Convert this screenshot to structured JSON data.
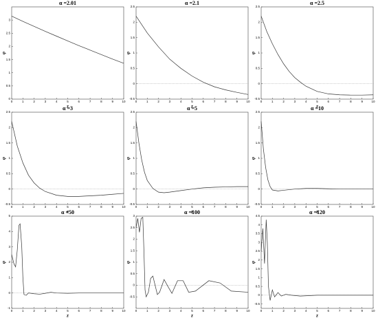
{
  "chart_data": [
    {
      "type": "line",
      "title": "α =2.01",
      "x_label": "z",
      "y_label": "φ",
      "color": "#333333",
      "xlim": [
        0,
        10
      ],
      "ylim": [
        0,
        3.5
      ],
      "xticks": [
        0,
        1,
        2,
        3,
        4,
        5,
        6,
        7,
        8,
        9,
        10
      ],
      "yticks": [
        0,
        0.5,
        1,
        1.5,
        2,
        2.5,
        3
      ],
      "x": [
        0,
        1,
        2,
        3,
        4,
        5,
        6,
        7,
        8,
        9,
        10
      ],
      "values": [
        3.15,
        2.95,
        2.76,
        2.57,
        2.39,
        2.21,
        2.03,
        1.86,
        1.69,
        1.52,
        1.36
      ]
    },
    {
      "type": "line",
      "title": "α =2.1",
      "x_label": "z",
      "y_label": "φ",
      "color": "#333333",
      "xlim": [
        0,
        10
      ],
      "ylim": [
        -0.5,
        2.5
      ],
      "xticks": [
        0,
        1,
        2,
        3,
        4,
        5,
        6,
        7,
        8,
        9,
        10
      ],
      "yticks": [
        -0.5,
        0,
        0.5,
        1,
        1.5,
        2,
        2.5
      ],
      "x": [
        0,
        1,
        2,
        3,
        4,
        5,
        6,
        7,
        8,
        9,
        10
      ],
      "values": [
        2.2,
        1.65,
        1.2,
        0.8,
        0.5,
        0.25,
        0.05,
        -0.1,
        -0.2,
        -0.28,
        -0.35
      ]
    },
    {
      "type": "line",
      "title": "α =2.5",
      "x_label": "z",
      "y_label": "φ",
      "color": "#333333",
      "xlim": [
        0,
        10
      ],
      "ylim": [
        -0.5,
        2.5
      ],
      "xticks": [
        0,
        1,
        2,
        3,
        4,
        5,
        6,
        7,
        8,
        9,
        10
      ],
      "yticks": [
        -0.5,
        0,
        0.5,
        1,
        1.5,
        2,
        2.5
      ],
      "x": [
        0,
        0.5,
        1,
        1.5,
        2,
        2.5,
        3,
        3.5,
        4,
        5,
        6,
        7,
        8,
        9,
        10
      ],
      "values": [
        2.2,
        1.7,
        1.3,
        0.95,
        0.65,
        0.4,
        0.2,
        0.05,
        -0.08,
        -0.25,
        -0.33,
        -0.36,
        -0.37,
        -0.37,
        -0.36
      ]
    },
    {
      "type": "line",
      "title": "α =3",
      "x_label": "z",
      "y_label": "φ",
      "color": "#333333",
      "xlim": [
        0,
        10
      ],
      "ylim": [
        -0.5,
        2.5
      ],
      "xticks": [
        0,
        1,
        2,
        3,
        4,
        5,
        6,
        7,
        8,
        9,
        10
      ],
      "yticks": [
        -0.5,
        0,
        0.5,
        1,
        1.5,
        2,
        2.5
      ],
      "x": [
        0,
        0.5,
        1,
        1.5,
        2,
        2.5,
        3,
        4,
        5,
        6,
        7,
        8,
        9,
        10
      ],
      "values": [
        2.2,
        1.4,
        0.85,
        0.45,
        0.2,
        0.03,
        -0.08,
        -0.2,
        -0.24,
        -0.24,
        -0.22,
        -0.2,
        -0.17,
        -0.14
      ]
    },
    {
      "type": "line",
      "title": "α =5",
      "x_label": "z",
      "y_label": "φ",
      "color": "#333333",
      "xlim": [
        0,
        10
      ],
      "ylim": [
        -0.5,
        2.5
      ],
      "xticks": [
        0,
        1,
        2,
        3,
        4,
        5,
        6,
        7,
        8,
        9,
        10
      ],
      "yticks": [
        -0.5,
        0,
        0.5,
        1,
        1.5,
        2,
        2.5
      ],
      "x": [
        0,
        0.25,
        0.5,
        0.75,
        1,
        1.5,
        2,
        2.5,
        3,
        4,
        5,
        6,
        7,
        8,
        9,
        10
      ],
      "values": [
        2.2,
        1.5,
        0.95,
        0.55,
        0.28,
        0.02,
        -0.1,
        -0.12,
        -0.1,
        -0.05,
        0,
        0.04,
        0.06,
        0.07,
        0.08,
        0.08
      ]
    },
    {
      "type": "line",
      "title": "α =10",
      "x_label": "z",
      "y_label": "φ",
      "color": "#333333",
      "xlim": [
        0,
        10
      ],
      "ylim": [
        -0.5,
        2.5
      ],
      "xticks": [
        0,
        1,
        2,
        3,
        4,
        5,
        6,
        7,
        8,
        9,
        10
      ],
      "yticks": [
        -0.5,
        0,
        0.5,
        1,
        1.5,
        2,
        2.5
      ],
      "x": [
        0,
        0.2,
        0.4,
        0.6,
        0.8,
        1,
        1.5,
        2,
        3,
        4,
        5,
        6,
        7,
        8,
        9,
        10
      ],
      "values": [
        2.2,
        1.3,
        0.7,
        0.3,
        0.08,
        -0.03,
        -0.06,
        -0.04,
        0,
        0.02,
        0.02,
        0.01,
        0,
        0,
        0,
        0
      ]
    },
    {
      "type": "line",
      "title": "α =50",
      "x_label": "z",
      "y_label": "φ",
      "color": "#333333",
      "xlim": [
        0,
        10
      ],
      "ylim": [
        -1,
        5
      ],
      "xticks": [
        0,
        1,
        2,
        3,
        4,
        5,
        6,
        7,
        8,
        9,
        10
      ],
      "yticks": [
        -1,
        0,
        1,
        2,
        3,
        4,
        5
      ],
      "x": [
        0,
        0.2,
        0.35,
        0.5,
        0.65,
        0.75,
        0.9,
        1,
        1.1,
        1.3,
        1.5,
        2,
        2.5,
        3,
        3.5,
        4,
        5,
        6,
        7,
        10
      ],
      "values": [
        2.5,
        1.9,
        1.7,
        2.8,
        4.4,
        4.5,
        3,
        1,
        -0.1,
        -0.15,
        0,
        -0.05,
        -0.08,
        -0.02,
        0.05,
        0,
        -0.02,
        0,
        0,
        0
      ]
    },
    {
      "type": "line",
      "title": "α =100",
      "x_label": "z",
      "y_label": "φ",
      "color": "#333333",
      "xlim": [
        0,
        10
      ],
      "ylim": [
        -1,
        3
      ],
      "xticks": [
        0,
        1,
        2,
        3,
        4,
        5,
        6,
        7,
        8,
        9,
        10
      ],
      "yticks": [
        -0.5,
        0,
        0.5,
        1,
        1.5,
        2,
        2.5,
        3
      ],
      "x": [
        0,
        0.15,
        0.3,
        0.45,
        0.6,
        0.7,
        0.8,
        0.9,
        1.1,
        1.3,
        1.5,
        1.7,
        1.9,
        2.1,
        2.5,
        2.9,
        3.2,
        3.7,
        4.2,
        4.7,
        5.3,
        6.5,
        7.5,
        8.5,
        10
      ],
      "values": [
        2.5,
        2.9,
        2.3,
        2.9,
        2.95,
        1.5,
        -0.2,
        -0.5,
        -0.3,
        0.3,
        0.4,
        0,
        -0.4,
        -0.3,
        0.25,
        -0.1,
        -0.35,
        0.2,
        0.2,
        -0.3,
        -0.25,
        0.2,
        0.1,
        -0.25,
        -0.3
      ]
    },
    {
      "type": "line",
      "title": "α =120",
      "x_label": "z",
      "y_label": "φ",
      "color": "#333333",
      "xlim": [
        0,
        10
      ],
      "ylim": [
        -0.75,
        4.5
      ],
      "xticks": [
        0,
        1,
        2,
        3,
        4,
        5,
        6,
        7,
        8,
        9,
        10
      ],
      "yticks": [
        -0.5,
        0,
        0.5,
        1,
        1.5,
        2,
        2.5,
        3,
        3.5,
        4,
        4.5
      ],
      "x": [
        0,
        0.15,
        0.3,
        0.45,
        0.55,
        0.65,
        0.8,
        1,
        1.2,
        1.5,
        1.8,
        2.2,
        2.7,
        3.5,
        5,
        10
      ],
      "values": [
        2.5,
        3.8,
        1.8,
        4.3,
        3,
        0.5,
        -0.3,
        0.3,
        -0.1,
        0.15,
        -0.05,
        0.05,
        0,
        -0.05,
        0,
        0
      ]
    }
  ]
}
